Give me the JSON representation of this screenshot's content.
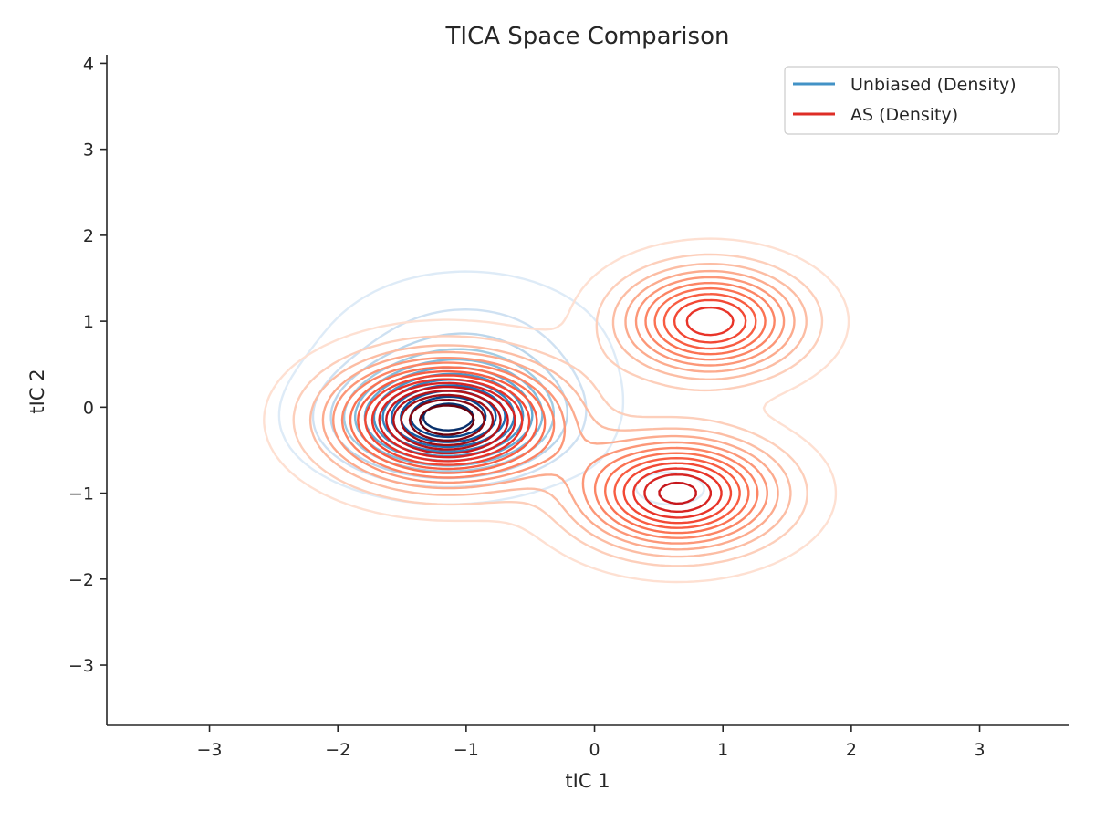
{
  "chart_data": {
    "type": "contour",
    "title": "TICA Space Comparison",
    "xlabel": "tIC 1",
    "ylabel": "tIC 2",
    "xlim": [
      -3.8,
      3.7
    ],
    "ylim": [
      -3.7,
      4.1
    ],
    "xticks": [
      -3,
      -2,
      -1,
      0,
      1,
      2,
      3
    ],
    "xtick_labels": [
      "−3",
      "−2",
      "−1",
      "0",
      "1",
      "2",
      "3"
    ],
    "yticks": [
      -3,
      -2,
      -1,
      0,
      1,
      2,
      3,
      4
    ],
    "ytick_labels": [
      "−3",
      "−2",
      "−1",
      "0",
      "1",
      "2",
      "3",
      "4"
    ],
    "grid": false,
    "legend_position": "top-right",
    "series": [
      {
        "name": "Unbiased (Density)",
        "legend_color": "#4292c6",
        "colormap": "Blues",
        "contour_levels": 12,
        "modes": [
          {
            "x": -1.15,
            "y": -0.15,
            "sx": 0.5,
            "sy": 0.38,
            "w": 1.0
          },
          {
            "x": -1.0,
            "y": 0.55,
            "sx": 0.6,
            "sy": 0.55,
            "w": 0.22
          },
          {
            "x": 0.6,
            "y": -0.95,
            "sx": 0.35,
            "sy": 0.25,
            "w": 0.05
          }
        ]
      },
      {
        "name": "AS (Density)",
        "legend_color": "#de2d26",
        "colormap": "Reds",
        "contour_levels": 16,
        "modes": [
          {
            "x": -1.15,
            "y": -0.15,
            "sx": 0.55,
            "sy": 0.45,
            "w": 1.0
          },
          {
            "x": 0.9,
            "y": 1.0,
            "sx": 0.45,
            "sy": 0.4,
            "w": 0.62
          },
          {
            "x": 0.65,
            "y": -1.0,
            "sx": 0.5,
            "sy": 0.42,
            "w": 0.72
          }
        ]
      }
    ]
  }
}
